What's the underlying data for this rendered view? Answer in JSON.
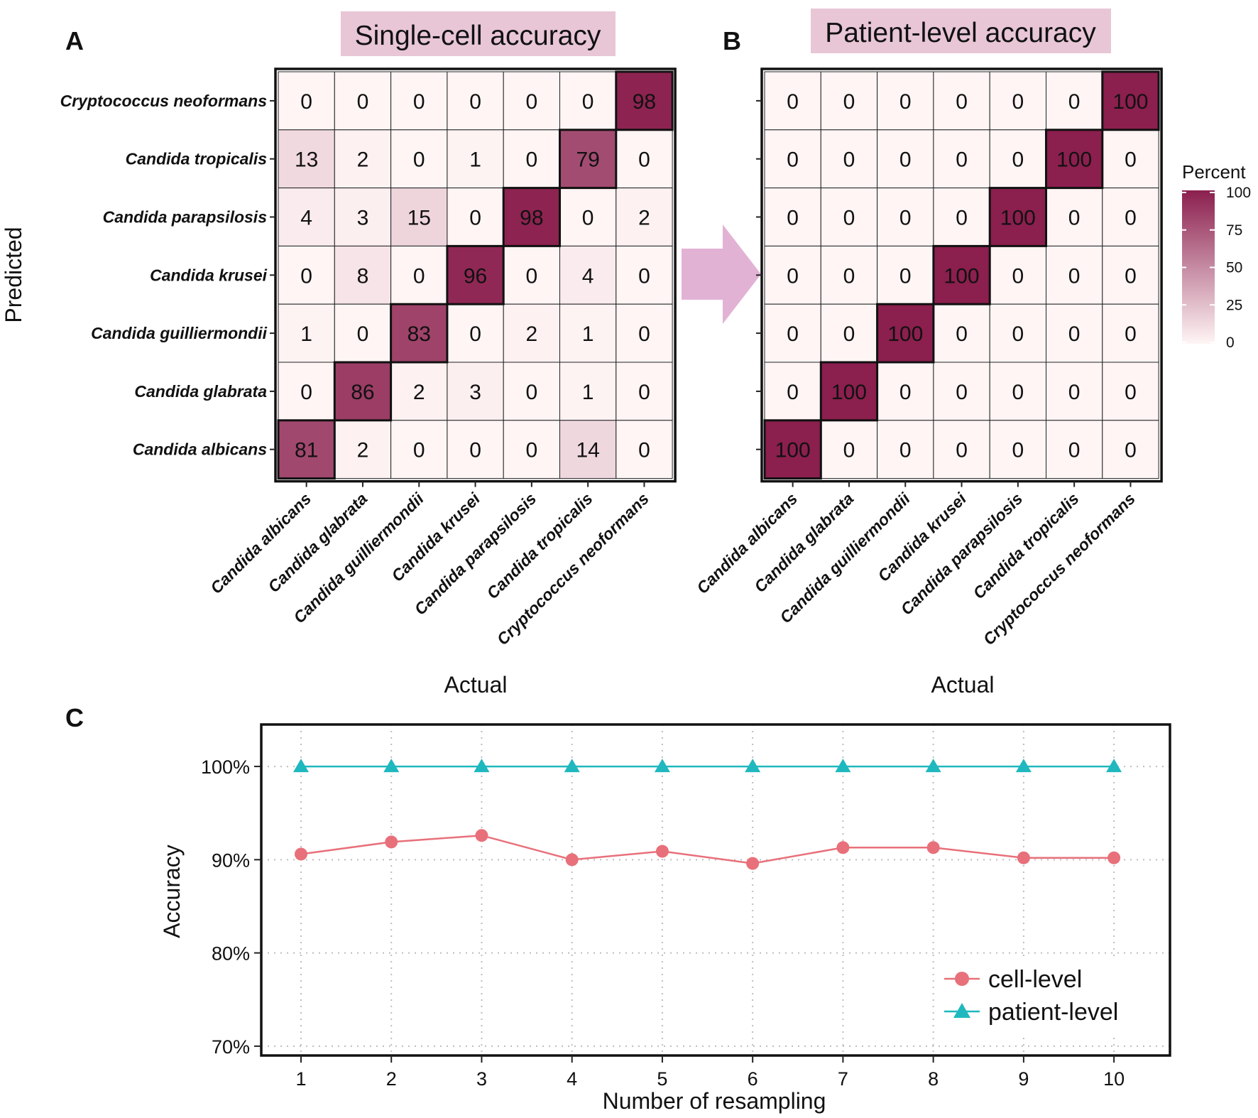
{
  "panels": {
    "a": {
      "letter": "A",
      "title": "Single-cell accuracy"
    },
    "b": {
      "letter": "B",
      "title": "Patient-level accuracy"
    },
    "c": {
      "letter": "C"
    }
  },
  "colors": {
    "title_bg": "#e8c6d6",
    "arrow": "#e2b2d5",
    "low": "#fff5f5",
    "high": "#8b1f4e",
    "cell_line": "#e8707a",
    "patient_line": "#1fb8be",
    "grid": "#bdbdbd"
  },
  "chart_data": [
    {
      "type": "heatmap",
      "title": "Single-cell accuracy",
      "xlabel": "Actual",
      "ylabel": "Predicted",
      "columns": [
        "Candida albicans",
        "Candida glabrata",
        "Candida guilliermondii",
        "Candida krusei",
        "Candida parapsilosis",
        "Candida tropicalis",
        "Cryptococcus neoformans"
      ],
      "rows": [
        "Cryptococcus neoformans",
        "Candida tropicalis",
        "Candida parapsilosis",
        "Candida krusei",
        "Candida guilliermondii",
        "Candida glabrata",
        "Candida albicans"
      ],
      "values": [
        [
          0,
          0,
          0,
          0,
          0,
          0,
          98
        ],
        [
          13,
          2,
          0,
          1,
          0,
          79,
          0
        ],
        [
          4,
          3,
          15,
          0,
          98,
          0,
          2
        ],
        [
          0,
          8,
          0,
          96,
          0,
          4,
          0
        ],
        [
          1,
          0,
          83,
          0,
          2,
          1,
          0
        ],
        [
          0,
          86,
          2,
          3,
          0,
          1,
          0
        ],
        [
          81,
          2,
          0,
          0,
          0,
          14,
          0
        ]
      ]
    },
    {
      "type": "heatmap",
      "title": "Patient-level accuracy",
      "xlabel": "Actual",
      "ylabel": "",
      "columns": [
        "Candida albicans",
        "Candida glabrata",
        "Candida guilliermondii",
        "Candida krusei",
        "Candida parapsilosis",
        "Candida tropicalis",
        "Cryptococcus neoformans"
      ],
      "rows": [
        "Cryptococcus neoformans",
        "Candida tropicalis",
        "Candida parapsilosis",
        "Candida krusei",
        "Candida guilliermondii",
        "Candida glabrata",
        "Candida albicans"
      ],
      "values": [
        [
          0,
          0,
          0,
          0,
          0,
          0,
          100
        ],
        [
          0,
          0,
          0,
          0,
          0,
          100,
          0
        ],
        [
          0,
          0,
          0,
          0,
          100,
          0,
          0
        ],
        [
          0,
          0,
          0,
          100,
          0,
          0,
          0
        ],
        [
          0,
          0,
          100,
          0,
          0,
          0,
          0
        ],
        [
          0,
          100,
          0,
          0,
          0,
          0,
          0
        ],
        [
          100,
          0,
          0,
          0,
          0,
          0,
          0
        ]
      ],
      "legend": {
        "title": "Percent",
        "ticks": [
          "100",
          "75",
          "50",
          "25",
          "0"
        ],
        "range": [
          0,
          100
        ]
      }
    },
    {
      "type": "line",
      "xlabel": "Number of resampling",
      "ylabel": "Accuracy",
      "x": [
        1,
        2,
        3,
        4,
        5,
        6,
        7,
        8,
        9,
        10
      ],
      "ylim": [
        69,
        104.5
      ],
      "yticks": [
        70,
        80,
        90,
        100
      ],
      "ytick_labels": [
        "70%",
        "80%",
        "90%",
        "100%"
      ],
      "series": [
        {
          "name": "cell-level",
          "marker": "circle",
          "values": [
            90.6,
            91.9,
            92.6,
            90.0,
            90.9,
            89.6,
            91.3,
            91.3,
            90.2,
            90.2
          ]
        },
        {
          "name": "patient-level",
          "marker": "triangle",
          "values": [
            100,
            100,
            100,
            100,
            100,
            100,
            100,
            100,
            100,
            100
          ]
        }
      ],
      "legend_position": "bottom-right",
      "grid": "dotted"
    }
  ]
}
